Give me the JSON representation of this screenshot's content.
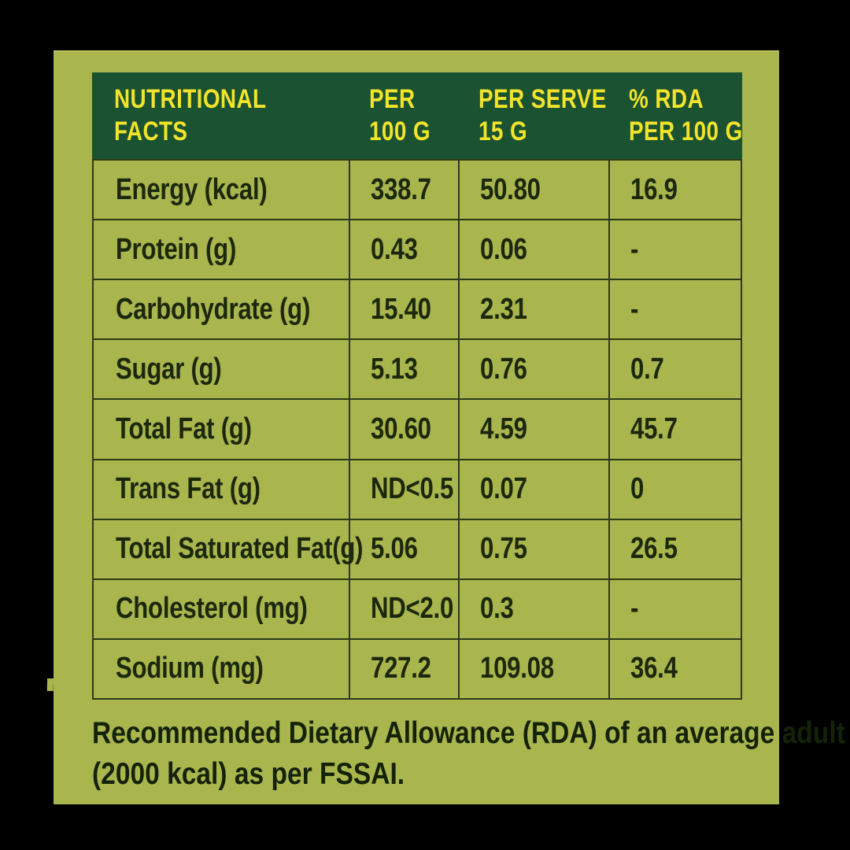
{
  "colors": {
    "background": "#000000",
    "panel_green": "#a9b54d",
    "header_green": "#1a5232",
    "header_text_yellow": "#f2e32b",
    "body_text": "#1c280e",
    "grid_line": "#2e3917"
  },
  "table": {
    "header": {
      "col1": {
        "line1": "NUTRITIONAL",
        "line2": "FACTS"
      },
      "col2": {
        "line1": "PER",
        "line2": "100 G"
      },
      "col3": {
        "line1": "PER SERVE",
        "line2": "15 G"
      },
      "col4": {
        "line1": "% RDA",
        "line2": "PER 100 G"
      }
    },
    "rows": [
      {
        "label": "Energy (kcal)",
        "per100g": "338.7",
        "perServe": "50.80",
        "rda": "16.9"
      },
      {
        "label": "Protein (g)",
        "per100g": "0.43",
        "perServe": "0.06",
        "rda": "-"
      },
      {
        "label": "Carbohydrate (g)",
        "per100g": "15.40",
        "perServe": "2.31",
        "rda": "-"
      },
      {
        "label": "Sugar (g)",
        "per100g": "5.13",
        "perServe": "0.76",
        "rda": "0.7"
      },
      {
        "label": "Total Fat (g)",
        "per100g": "30.60",
        "perServe": "4.59",
        "rda": "45.7"
      },
      {
        "label": "Trans Fat (g)",
        "per100g": "ND<0.5",
        "perServe": "0.07",
        "rda": "0"
      },
      {
        "label": "Total Saturated Fat(g)",
        "per100g": "5.06",
        "perServe": "0.75",
        "rda": "26.5"
      },
      {
        "label": "Cholesterol (mg)",
        "per100g": "ND<2.0",
        "perServe": "0.3",
        "rda": "-"
      },
      {
        "label": "Sodium (mg)",
        "per100g": "727.2",
        "perServe": "109.08",
        "rda": "36.4"
      }
    ]
  },
  "footer": {
    "line1": "Recommended Dietary Allowance (RDA) of an average adult",
    "line2": "(2000 kcal) as per FSSAI."
  },
  "edge_fragment": "."
}
